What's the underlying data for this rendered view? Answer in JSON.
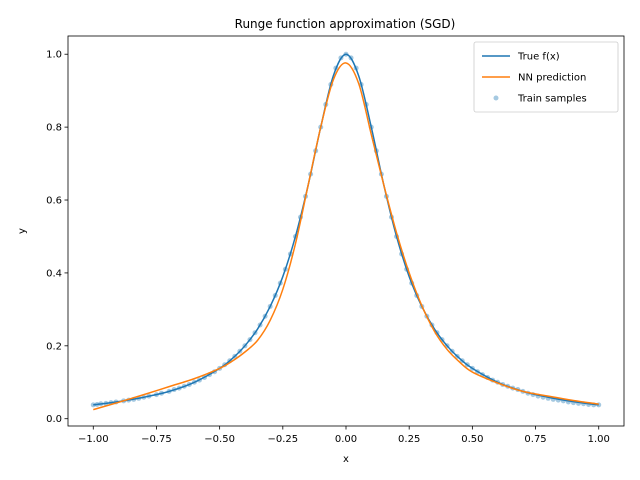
{
  "chart_data": {
    "type": "line",
    "title": "Runge function approximation (SGD)",
    "xlabel": "x",
    "ylabel": "y",
    "xlim": [
      -1.1,
      1.1
    ],
    "ylim": [
      -0.02,
      1.05
    ],
    "xticks": [
      -1.0,
      -0.75,
      -0.5,
      -0.25,
      0.0,
      0.25,
      0.5,
      0.75,
      1.0
    ],
    "xtick_labels": [
      "−1.00",
      "−0.75",
      "−0.50",
      "−0.25",
      "0.00",
      "0.25",
      "0.50",
      "0.75",
      "1.00"
    ],
    "yticks": [
      0.0,
      0.2,
      0.4,
      0.6,
      0.8,
      1.0
    ],
    "ytick_labels": [
      "0.0",
      "0.2",
      "0.4",
      "0.6",
      "0.8",
      "1.0"
    ],
    "grid": false,
    "legend_position": "top-right",
    "series": [
      {
        "name": "True f(x)",
        "kind": "line",
        "color": "#1f77b4",
        "x": [
          -1.0,
          -0.9,
          -0.8,
          -0.7,
          -0.6,
          -0.5,
          -0.45,
          -0.4,
          -0.35,
          -0.3,
          -0.25,
          -0.2,
          -0.15,
          -0.1,
          -0.05,
          0.0,
          0.05,
          0.1,
          0.15,
          0.2,
          0.25,
          0.3,
          0.35,
          0.4,
          0.45,
          0.5,
          0.6,
          0.7,
          0.8,
          0.9,
          1.0
        ],
        "y": [
          0.038,
          0.047,
          0.059,
          0.075,
          0.1,
          0.138,
          0.165,
          0.2,
          0.246,
          0.308,
          0.39,
          0.5,
          0.64,
          0.8,
          0.941,
          1.0,
          0.941,
          0.8,
          0.64,
          0.5,
          0.39,
          0.308,
          0.246,
          0.2,
          0.165,
          0.138,
          0.1,
          0.075,
          0.059,
          0.047,
          0.038
        ]
      },
      {
        "name": "NN prediction",
        "kind": "line",
        "color": "#ff7f0e",
        "x": [
          -1.0,
          -0.9,
          -0.8,
          -0.7,
          -0.6,
          -0.5,
          -0.45,
          -0.4,
          -0.35,
          -0.3,
          -0.25,
          -0.2,
          -0.15,
          -0.1,
          -0.05,
          0.0,
          0.05,
          0.1,
          0.15,
          0.2,
          0.25,
          0.3,
          0.35,
          0.4,
          0.45,
          0.5,
          0.6,
          0.7,
          0.8,
          0.9,
          1.0
        ],
        "y": [
          0.025,
          0.045,
          0.066,
          0.088,
          0.11,
          0.138,
          0.158,
          0.183,
          0.215,
          0.27,
          0.355,
          0.48,
          0.64,
          0.8,
          0.93,
          0.976,
          0.92,
          0.78,
          0.64,
          0.51,
          0.4,
          0.31,
          0.24,
          0.19,
          0.155,
          0.128,
          0.098,
          0.075,
          0.062,
          0.05,
          0.04
        ]
      },
      {
        "name": "Train samples",
        "kind": "scatter",
        "color": "#1f77b4",
        "opacity": 0.4,
        "x": [
          -1.0,
          -0.985,
          -0.97,
          -0.95,
          -0.93,
          -0.91,
          -0.88,
          -0.86,
          -0.84,
          -0.82,
          -0.8,
          -0.78,
          -0.75,
          -0.73,
          -0.7,
          -0.68,
          -0.66,
          -0.64,
          -0.62,
          -0.6,
          -0.58,
          -0.56,
          -0.54,
          -0.52,
          -0.5,
          -0.48,
          -0.46,
          -0.44,
          -0.42,
          -0.4,
          -0.38,
          -0.36,
          -0.34,
          -0.32,
          -0.3,
          -0.28,
          -0.26,
          -0.24,
          -0.22,
          -0.2,
          -0.18,
          -0.16,
          -0.14,
          -0.12,
          -0.1,
          -0.08,
          -0.06,
          -0.04,
          -0.02,
          0.0,
          0.02,
          0.04,
          0.06,
          0.08,
          0.1,
          0.12,
          0.14,
          0.16,
          0.18,
          0.2,
          0.22,
          0.24,
          0.26,
          0.28,
          0.3,
          0.32,
          0.34,
          0.36,
          0.38,
          0.4,
          0.42,
          0.44,
          0.46,
          0.48,
          0.5,
          0.52,
          0.54,
          0.56,
          0.58,
          0.6,
          0.62,
          0.64,
          0.66,
          0.68,
          0.7,
          0.72,
          0.74,
          0.76,
          0.78,
          0.8,
          0.82,
          0.84,
          0.86,
          0.88,
          0.9,
          0.92,
          0.94,
          0.96,
          0.98,
          1.0
        ],
        "y": [
          0.038,
          0.039,
          0.041,
          0.042,
          0.044,
          0.046,
          0.049,
          0.051,
          0.053,
          0.056,
          0.059,
          0.062,
          0.066,
          0.07,
          0.075,
          0.08,
          0.084,
          0.089,
          0.094,
          0.1,
          0.106,
          0.113,
          0.121,
          0.129,
          0.138,
          0.148,
          0.159,
          0.171,
          0.185,
          0.2,
          0.217,
          0.236,
          0.257,
          0.281,
          0.308,
          0.338,
          0.372,
          0.41,
          0.452,
          0.5,
          0.553,
          0.61,
          0.671,
          0.735,
          0.8,
          0.862,
          0.917,
          0.962,
          0.99,
          1.0,
          0.99,
          0.962,
          0.917,
          0.862,
          0.8,
          0.735,
          0.671,
          0.61,
          0.553,
          0.5,
          0.452,
          0.41,
          0.372,
          0.338,
          0.308,
          0.281,
          0.257,
          0.236,
          0.217,
          0.2,
          0.185,
          0.171,
          0.159,
          0.148,
          0.138,
          0.129,
          0.121,
          0.113,
          0.106,
          0.1,
          0.094,
          0.089,
          0.084,
          0.08,
          0.075,
          0.07,
          0.066,
          0.062,
          0.059,
          0.056,
          0.053,
          0.051,
          0.049,
          0.046,
          0.044,
          0.042,
          0.041,
          0.039,
          0.038,
          0.038
        ]
      }
    ]
  }
}
